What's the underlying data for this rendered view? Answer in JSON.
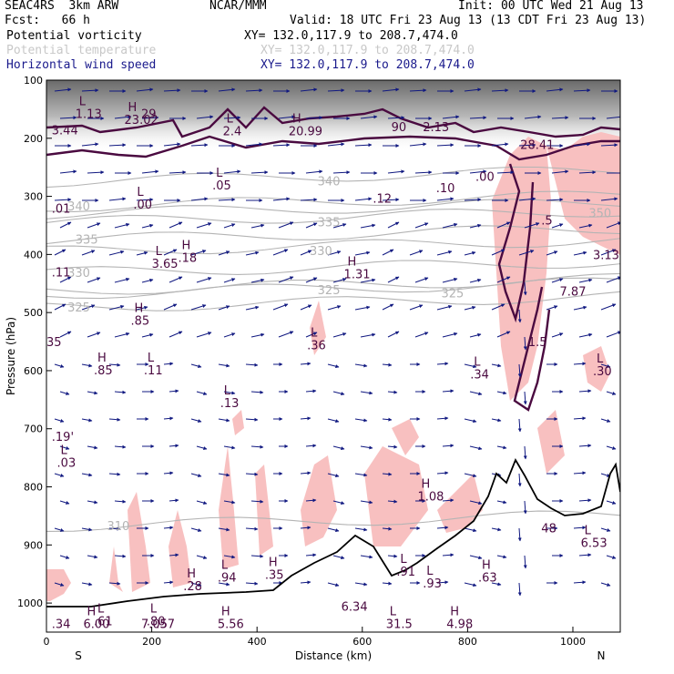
{
  "header": {
    "model": "SEAC4RS  3km ARW",
    "org": "NCAR/MMM",
    "init": "Init: 00 UTC Wed 21 Aug 13",
    "fcst": "Fcst:   66 h",
    "valid": "Valid: 18 UTC Fri 23 Aug 13 (13 CDT Fri 23 Aug 13)",
    "fields": [
      {
        "name": "Potential vorticity",
        "xy": "XY= 132.0,117.9 to 208.7,474.0",
        "color": "#000000"
      },
      {
        "name": "Potential temperature",
        "xy": "XY= 132.0,117.9 to 208.7,474.0",
        "color": "#c8c8c8"
      },
      {
        "name": "Horizontal wind speed",
        "xy": "XY= 132.0,117.9 to 208.7,474.0",
        "color": "#1a1a8c"
      }
    ]
  },
  "chart_data": {
    "type": "cross-section",
    "xlabel": "Distance (km)",
    "ylabel": "Pressure (hPa)",
    "xlim": [
      0,
      1090
    ],
    "ylim": [
      1050,
      100
    ],
    "x_ticks": [
      0,
      200,
      400,
      600,
      800,
      1000
    ],
    "y_ticks": [
      100,
      200,
      300,
      400,
      500,
      600,
      700,
      800,
      900,
      1000
    ],
    "endpoints": {
      "left": "S",
      "right": "N"
    },
    "theta_contours": [
      {
        "label": "340",
        "p": 318,
        "lx": 40
      },
      {
        "label": "340",
        "p": 275,
        "lx": 515
      },
      {
        "label": "335",
        "p": 375,
        "lx": 55
      },
      {
        "label": "335",
        "p": 345,
        "lx": 515
      },
      {
        "label": "330",
        "p": 432,
        "lx": 40
      },
      {
        "label": "330",
        "p": 395,
        "lx": 500
      },
      {
        "label": "325",
        "p": 492,
        "lx": 40
      },
      {
        "label": "325",
        "p": 462,
        "lx": 515
      },
      {
        "label": "325",
        "p": 468,
        "lx": 750
      },
      {
        "label": "310",
        "p": 868,
        "lx": 115
      },
      {
        "label": "350",
        "p": 330,
        "lx": 1030
      }
    ],
    "extrema_labels": [
      {
        "kind": "L",
        "km": 55,
        "p": 162,
        "value": "1.13"
      },
      {
        "kind": "",
        "km": 10,
        "p": 190,
        "value": "3.44"
      },
      {
        "kind": "H",
        "km": 148,
        "p": 172,
        "value": "23.02"
      },
      {
        "kind": "",
        "km": 180,
        "p": 162,
        "value": "29"
      },
      {
        "kind": "L",
        "km": 335,
        "p": 192,
        "value": "2.4"
      },
      {
        "kind": "H",
        "km": 460,
        "p": 192,
        "value": "20.99"
      },
      {
        "kind": "",
        "km": 655,
        "p": 185,
        "value": "90"
      },
      {
        "kind": "",
        "km": 715,
        "p": 185,
        "value": "2.13"
      },
      {
        "kind": "",
        "km": 900,
        "p": 215,
        "value": "28.41"
      },
      {
        "kind": "L",
        "km": 315,
        "p": 285,
        "value": ".05"
      },
      {
        "kind": "L",
        "km": 165,
        "p": 318,
        "value": ".00"
      },
      {
        "kind": "",
        "km": 10,
        "p": 325,
        "value": ".01"
      },
      {
        "kind": "",
        "km": 620,
        "p": 308,
        "value": ".12"
      },
      {
        "kind": "",
        "km": 740,
        "p": 290,
        "value": ".10"
      },
      {
        "kind": "",
        "km": 815,
        "p": 270,
        "value": ".00"
      },
      {
        "kind": "L",
        "km": 200,
        "p": 420,
        "value": "3.65"
      },
      {
        "kind": "H",
        "km": 250,
        "p": 410,
        "value": ".18"
      },
      {
        "kind": "",
        "km": 10,
        "p": 435,
        "value": ".11"
      },
      {
        "kind": "H",
        "km": 565,
        "p": 438,
        "value": "1.31"
      },
      {
        "kind": "",
        "km": 940,
        "p": 345,
        "value": ".5"
      },
      {
        "kind": "",
        "km": 1055,
        "p": 405,
        "value": "3.13"
      },
      {
        "kind": "",
        "km": 975,
        "p": 468,
        "value": "7.87"
      },
      {
        "kind": "H",
        "km": 160,
        "p": 518,
        "value": ".85"
      },
      {
        "kind": "L",
        "km": 495,
        "p": 560,
        "value": ".36"
      },
      {
        "kind": "",
        "km": 0,
        "p": 555,
        "value": "35"
      },
      {
        "kind": "",
        "km": 915,
        "p": 555,
        "value": "1.5"
      },
      {
        "kind": "H",
        "km": 90,
        "p": 603,
        "value": ".85"
      },
      {
        "kind": "L",
        "km": 185,
        "p": 603,
        "value": ".11"
      },
      {
        "kind": "L",
        "km": 805,
        "p": 610,
        "value": ".34"
      },
      {
        "kind": "L",
        "km": 1050,
        "p": 605,
        "value": ".30"
      },
      {
        "kind": "L",
        "km": 330,
        "p": 660,
        "value": ".13"
      },
      {
        "kind": "",
        "km": 10,
        "p": 718,
        "value": ".19'"
      },
      {
        "kind": "L",
        "km": 20,
        "p": 762,
        "value": ".03"
      },
      {
        "kind": "H",
        "km": 705,
        "p": 820,
        "value": "1.08"
      },
      {
        "kind": "",
        "km": 940,
        "p": 875,
        "value": "48"
      },
      {
        "kind": "L",
        "km": 1015,
        "p": 900,
        "value": "6.53"
      },
      {
        "kind": "H",
        "km": 260,
        "p": 975,
        "value": ".28"
      },
      {
        "kind": "L",
        "km": 325,
        "p": 960,
        "value": ".94"
      },
      {
        "kind": "H",
        "km": 415,
        "p": 955,
        "value": ".35"
      },
      {
        "kind": "L",
        "km": 665,
        "p": 950,
        "value": ".91"
      },
      {
        "kind": "L",
        "km": 715,
        "p": 970,
        "value": ".93"
      },
      {
        "kind": "H",
        "km": 820,
        "p": 960,
        "value": ".63"
      },
      {
        "kind": "L",
        "km": 90,
        "p": 1035,
        "value": ".61"
      },
      {
        "kind": "L",
        "km": 190,
        "p": 1035,
        "value": ".80"
      },
      {
        "kind": "",
        "km": 200,
        "p": 1063,
        "value": "-.57"
      },
      {
        "kind": "",
        "km": 560,
        "p": 1010,
        "value": "6.34"
      },
      {
        "kind": "H",
        "km": 760,
        "p": 1060,
        "value": "4.98"
      },
      {
        "kind": "H",
        "km": 325,
        "p": 1100,
        "value": "5.56"
      },
      {
        "kind": "L",
        "km": 645,
        "p": 1100,
        "value": "31.5"
      },
      {
        "kind": "",
        "km": 10,
        "p": 1120,
        "value": ".34"
      },
      {
        "kind": "H",
        "km": 70,
        "p": 1150,
        "value": "6.00"
      },
      {
        "kind": "",
        "km": 180,
        "p": 1150,
        "value": "7.05"
      }
    ]
  },
  "colors": {
    "pv": "#4a0a40",
    "theta": "#b4b4b4",
    "wind": "#101880",
    "shade_pink": "#f8c0c0",
    "terrain": "#000000"
  }
}
